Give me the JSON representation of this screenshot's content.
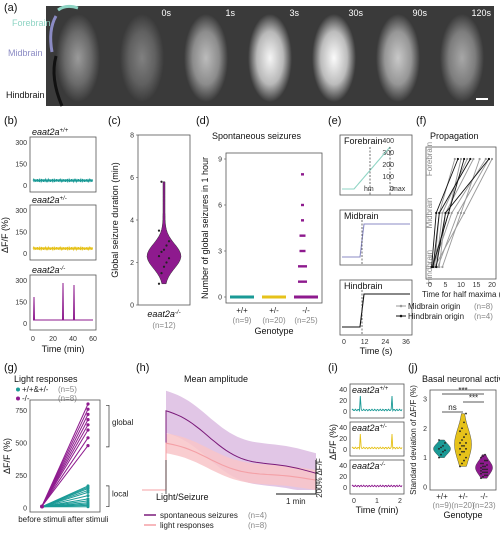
{
  "panel_labels": {
    "a": "(a)",
    "b": "(b)",
    "c": "(c)",
    "d": "(d)",
    "e": "(e)",
    "f": "(f)",
    "g": "(g)",
    "h": "(h)",
    "i": "(i)",
    "j": "(j)"
  },
  "colors": {
    "wt": "#1a9a96",
    "het": "#e6c21a",
    "ko": "#8e1a8e",
    "forebrain": "#8fd4c4",
    "midbrain": "#8b8bc4",
    "hindbrain": "#111111",
    "spont": "#7a1a7a",
    "light": "#f4a0a6",
    "gray_origin": "#999999"
  },
  "panel_a": {
    "region_labels": {
      "forebrain": "Forebrain",
      "midbrain": "Midbrain",
      "hindbrain": "Hindbrain"
    },
    "timepoints": [
      "0s",
      "1s",
      "3s",
      "30s",
      "90s",
      "120s"
    ],
    "brightness": [
      0.35,
      0.65,
      0.95,
      0.98,
      0.72,
      0.55
    ]
  },
  "panel_b": {
    "genotypes": [
      "eaat2a",
      "eaat2a",
      "eaat2a"
    ],
    "superscripts": [
      "+/+",
      "+/-",
      "-/-"
    ],
    "ylabel": "ΔF/F (%)",
    "xlabel": "Time (min)",
    "xticks": [
      "0",
      "20",
      "40",
      "60"
    ],
    "yticks_top": [
      "300",
      "150",
      "0"
    ],
    "yticks_mid": [
      "300",
      "150",
      "0"
    ],
    "yticks_bot": [
      "300",
      "150",
      "0"
    ]
  },
  "chart_data": [
    {
      "panel": "c",
      "type": "violin",
      "ylabel": "Global seizure duration (min)",
      "categories": [
        "eaat2a"
      ],
      "superscript": "-/-",
      "n_label": "(n=12)",
      "yticks": [
        "0",
        "2",
        "4",
        "6",
        "8"
      ],
      "ylim": [
        0,
        8
      ],
      "values": [
        1.0,
        1.5,
        1.8,
        2.0,
        2.2,
        2.3,
        2.5,
        2.6,
        2.8,
        3.0,
        3.5,
        5.8
      ]
    },
    {
      "panel": "d",
      "type": "scatter",
      "title": "Spontaneous seizures",
      "ylabel": "Number of global seizures in 1 hour",
      "xlabel": "Genotype",
      "categories": [
        "+/+",
        "+/-",
        "-/-"
      ],
      "n_labels": [
        "(n=9)",
        "(n=20)",
        "(n=25)"
      ],
      "yticks": [
        "0",
        "3",
        "6",
        "9"
      ],
      "ylim": [
        0,
        9
      ],
      "series": [
        {
          "category": "+/+",
          "values": [
            0,
            0,
            0,
            0,
            0,
            0,
            0,
            0,
            0
          ]
        },
        {
          "category": "+/-",
          "values": [
            0,
            0,
            0,
            0,
            0,
            0,
            0,
            0,
            0,
            0,
            0,
            0,
            0,
            0,
            0,
            0,
            0,
            0,
            0,
            0
          ]
        },
        {
          "category": "-/-",
          "values": [
            0,
            0,
            0,
            0,
            0,
            0,
            0,
            0,
            0,
            0,
            0,
            0,
            1,
            1,
            1,
            2,
            2,
            2,
            3,
            3,
            4,
            4,
            5,
            6,
            8
          ]
        }
      ]
    },
    {
      "panel": "e",
      "type": "line",
      "subpanels": [
        "Forebrain",
        "Midbrain",
        "Hindbrain"
      ],
      "annotations": [
        "hm",
        "max"
      ],
      "yticks": [
        "0",
        "100",
        "200",
        "300",
        "400"
      ],
      "xticks": [
        "0",
        "12",
        "24",
        "36"
      ],
      "xlabel": "Time (s)"
    },
    {
      "panel": "f",
      "type": "line",
      "title": "Propagation",
      "xlabel": "Time for half maxima (s)",
      "xticks": [
        "0",
        "5",
        "10",
        "15",
        "20"
      ],
      "region_ticks": [
        "Hindbrain",
        "Midbrain",
        "Forebrain"
      ],
      "legend": [
        {
          "label": "Midbrain origin",
          "n": "(n=8)"
        },
        {
          "label": "Hindbrain origin",
          "n": "(n=4)"
        }
      ],
      "gray_lines": [
        [
          1.5,
          0,
          3,
          1,
          8,
          2
        ],
        [
          2,
          0,
          4,
          1,
          12,
          2
        ],
        [
          0.5,
          0,
          6,
          1,
          10,
          2
        ],
        [
          3,
          0,
          5,
          1,
          14,
          2
        ],
        [
          1,
          0,
          7,
          1,
          18,
          2
        ],
        [
          2.5,
          0,
          9,
          1,
          19,
          2
        ],
        [
          4,
          0,
          10,
          1,
          16,
          2
        ],
        [
          1.5,
          0,
          11,
          1,
          20,
          2
        ]
      ],
      "black_lines": [
        [
          0.5,
          0,
          2,
          1,
          9,
          2
        ],
        [
          1,
          0,
          3,
          1,
          13,
          2
        ],
        [
          2,
          0,
          5,
          1,
          19,
          2
        ],
        [
          0.8,
          0,
          6,
          1,
          11,
          2
        ]
      ]
    },
    {
      "panel": "g",
      "type": "line",
      "title": "Light responses",
      "ylabel": "ΔF/F (%)",
      "categories": [
        "before stimuli",
        "after stimuli"
      ],
      "yticks": [
        "0",
        "250",
        "500",
        "750"
      ],
      "ylim": [
        0,
        800
      ],
      "legend": [
        {
          "label": "+/+&+/-",
          "n": "(n=5)"
        },
        {
          "label": "-/-",
          "n": "(n=8)"
        }
      ],
      "brackets": [
        "global",
        "local"
      ],
      "wt_after": [
        10,
        20,
        30,
        40,
        55,
        70,
        95,
        120,
        135,
        150,
        160,
        170
      ],
      "ko_after": [
        480,
        540,
        600,
        640,
        680,
        720,
        760,
        800
      ]
    },
    {
      "panel": "h",
      "type": "area",
      "title": "Mean amplitude",
      "event_label": "Light/Seizure",
      "scalebar_x": "1 min",
      "scalebar_y": "200% ΔF/F",
      "legend": [
        {
          "label": "spontaneous seizures",
          "n": "(n=4)"
        },
        {
          "label": "light responses",
          "n": "(n=8)"
        }
      ]
    },
    {
      "panel": "i",
      "type": "line",
      "genotypes": [
        "eaat2a",
        "eaat2a",
        "eaat2a"
      ],
      "superscripts": [
        "+/+",
        "+/-",
        "-/-"
      ],
      "ylabel": "ΔF/F (%)",
      "xlabel": "Time (min)",
      "xticks": [
        "0",
        "1",
        "2"
      ],
      "yticks": [
        "40",
        "20",
        "0"
      ]
    },
    {
      "panel": "j",
      "type": "violin",
      "title": "Basal neuronal activity",
      "ylabel": "Standard deviation of ΔF/F (%)",
      "xlabel": "Genotype",
      "categories": [
        "+/+",
        "+/-",
        "-/-"
      ],
      "n_labels": [
        "(n=9)",
        "(n=20)",
        "(n=23)"
      ],
      "yticks": [
        "0",
        "1",
        "2",
        "3"
      ],
      "ylim": [
        0,
        3.2
      ],
      "significance": [
        "ns",
        "***",
        "***"
      ],
      "series": [
        {
          "category": "+/+",
          "values": [
            1.0,
            1.1,
            1.2,
            1.25,
            1.3,
            1.35,
            1.4,
            1.5,
            1.6
          ]
        },
        {
          "category": "+/-",
          "values": [
            0.7,
            0.8,
            0.9,
            1.0,
            1.1,
            1.2,
            1.2,
            1.3,
            1.3,
            1.4,
            1.4,
            1.5,
            1.5,
            1.6,
            1.7,
            1.8,
            1.9,
            2.0,
            2.2,
            2.5
          ]
        },
        {
          "category": "-/-",
          "values": [
            0.3,
            0.35,
            0.4,
            0.4,
            0.45,
            0.5,
            0.5,
            0.5,
            0.55,
            0.6,
            0.6,
            0.6,
            0.65,
            0.7,
            0.7,
            0.75,
            0.8,
            0.8,
            0.9,
            0.9,
            1.0,
            1.05,
            1.1
          ]
        }
      ]
    }
  ]
}
